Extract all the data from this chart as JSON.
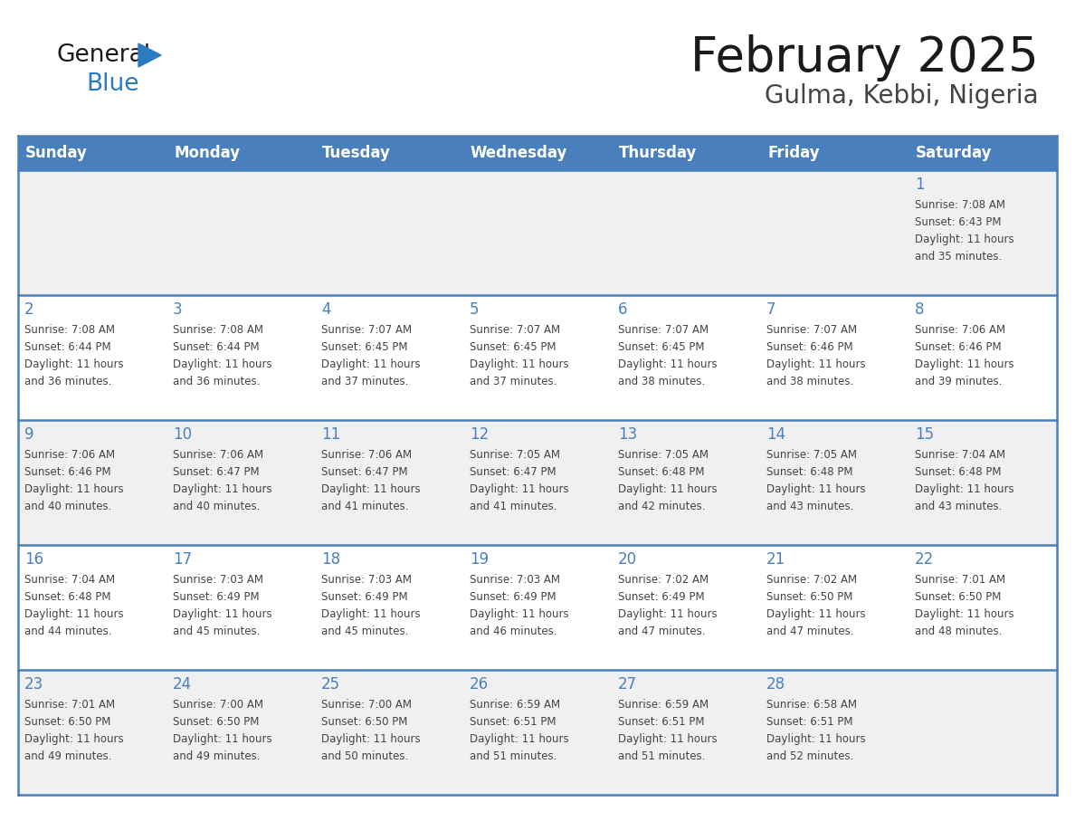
{
  "title": "February 2025",
  "subtitle": "Gulma, Kebbi, Nigeria",
  "header_bg": "#4a7fbd",
  "header_text_color": "#ffffff",
  "day_names": [
    "Sunday",
    "Monday",
    "Tuesday",
    "Wednesday",
    "Thursday",
    "Friday",
    "Saturday"
  ],
  "cell_bg_light": "#f0f0f0",
  "cell_bg_white": "#ffffff",
  "border_color": "#4a7fbd",
  "day_number_color": "#4a7fbd",
  "text_color": "#444444",
  "logo_general_color": "#1a1a1a",
  "logo_blue_color": "#2a7bbf",
  "logo_triangle_color": "#2a7bbf",
  "title_color": "#1a1a1a",
  "subtitle_color": "#444444",
  "calendar_data": [
    [
      null,
      null,
      null,
      null,
      null,
      null,
      {
        "day": 1,
        "sunrise": "7:08 AM",
        "sunset": "6:43 PM",
        "daylight": "11 hours and 35 minutes."
      }
    ],
    [
      {
        "day": 2,
        "sunrise": "7:08 AM",
        "sunset": "6:44 PM",
        "daylight": "11 hours and 36 minutes."
      },
      {
        "day": 3,
        "sunrise": "7:08 AM",
        "sunset": "6:44 PM",
        "daylight": "11 hours and 36 minutes."
      },
      {
        "day": 4,
        "sunrise": "7:07 AM",
        "sunset": "6:45 PM",
        "daylight": "11 hours and 37 minutes."
      },
      {
        "day": 5,
        "sunrise": "7:07 AM",
        "sunset": "6:45 PM",
        "daylight": "11 hours and 37 minutes."
      },
      {
        "day": 6,
        "sunrise": "7:07 AM",
        "sunset": "6:45 PM",
        "daylight": "11 hours and 38 minutes."
      },
      {
        "day": 7,
        "sunrise": "7:07 AM",
        "sunset": "6:46 PM",
        "daylight": "11 hours and 38 minutes."
      },
      {
        "day": 8,
        "sunrise": "7:06 AM",
        "sunset": "6:46 PM",
        "daylight": "11 hours and 39 minutes."
      }
    ],
    [
      {
        "day": 9,
        "sunrise": "7:06 AM",
        "sunset": "6:46 PM",
        "daylight": "11 hours and 40 minutes."
      },
      {
        "day": 10,
        "sunrise": "7:06 AM",
        "sunset": "6:47 PM",
        "daylight": "11 hours and 40 minutes."
      },
      {
        "day": 11,
        "sunrise": "7:06 AM",
        "sunset": "6:47 PM",
        "daylight": "11 hours and 41 minutes."
      },
      {
        "day": 12,
        "sunrise": "7:05 AM",
        "sunset": "6:47 PM",
        "daylight": "11 hours and 41 minutes."
      },
      {
        "day": 13,
        "sunrise": "7:05 AM",
        "sunset": "6:48 PM",
        "daylight": "11 hours and 42 minutes."
      },
      {
        "day": 14,
        "sunrise": "7:05 AM",
        "sunset": "6:48 PM",
        "daylight": "11 hours and 43 minutes."
      },
      {
        "day": 15,
        "sunrise": "7:04 AM",
        "sunset": "6:48 PM",
        "daylight": "11 hours and 43 minutes."
      }
    ],
    [
      {
        "day": 16,
        "sunrise": "7:04 AM",
        "sunset": "6:48 PM",
        "daylight": "11 hours and 44 minutes."
      },
      {
        "day": 17,
        "sunrise": "7:03 AM",
        "sunset": "6:49 PM",
        "daylight": "11 hours and 45 minutes."
      },
      {
        "day": 18,
        "sunrise": "7:03 AM",
        "sunset": "6:49 PM",
        "daylight": "11 hours and 45 minutes."
      },
      {
        "day": 19,
        "sunrise": "7:03 AM",
        "sunset": "6:49 PM",
        "daylight": "11 hours and 46 minutes."
      },
      {
        "day": 20,
        "sunrise": "7:02 AM",
        "sunset": "6:49 PM",
        "daylight": "11 hours and 47 minutes."
      },
      {
        "day": 21,
        "sunrise": "7:02 AM",
        "sunset": "6:50 PM",
        "daylight": "11 hours and 47 minutes."
      },
      {
        "day": 22,
        "sunrise": "7:01 AM",
        "sunset": "6:50 PM",
        "daylight": "11 hours and 48 minutes."
      }
    ],
    [
      {
        "day": 23,
        "sunrise": "7:01 AM",
        "sunset": "6:50 PM",
        "daylight": "11 hours and 49 minutes."
      },
      {
        "day": 24,
        "sunrise": "7:00 AM",
        "sunset": "6:50 PM",
        "daylight": "11 hours and 49 minutes."
      },
      {
        "day": 25,
        "sunrise": "7:00 AM",
        "sunset": "6:50 PM",
        "daylight": "11 hours and 50 minutes."
      },
      {
        "day": 26,
        "sunrise": "6:59 AM",
        "sunset": "6:51 PM",
        "daylight": "11 hours and 51 minutes."
      },
      {
        "day": 27,
        "sunrise": "6:59 AM",
        "sunset": "6:51 PM",
        "daylight": "11 hours and 51 minutes."
      },
      {
        "day": 28,
        "sunrise": "6:58 AM",
        "sunset": "6:51 PM",
        "daylight": "11 hours and 52 minutes."
      },
      null
    ]
  ]
}
